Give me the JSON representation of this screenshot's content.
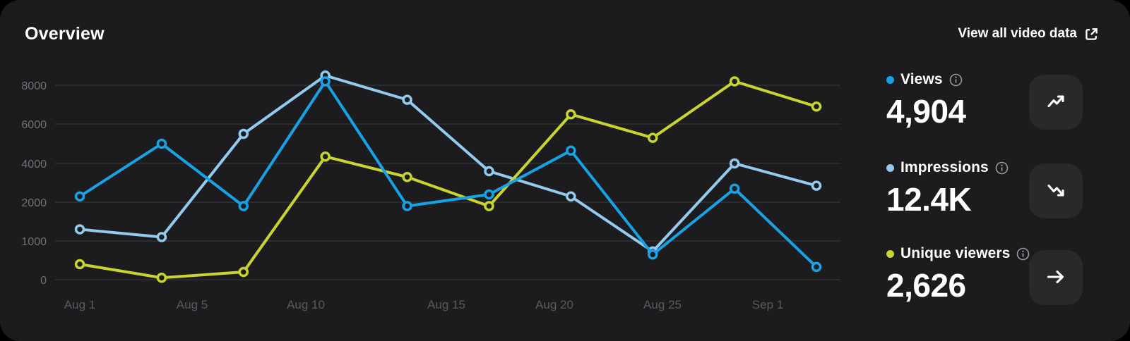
{
  "header": {
    "title": "Overview",
    "link_label": "View all video data",
    "link_icon": "external-link-icon"
  },
  "chart_data": {
    "type": "line",
    "title": "Overview — video performance over time",
    "x_labels": [
      "Aug 1",
      "Aug 5",
      "Aug 10",
      "Aug 15",
      "Aug 20",
      "Aug 25",
      "Sep 1"
    ],
    "y_ticks": [
      0,
      1000,
      2000,
      4000,
      6000,
      8000
    ],
    "y_axis_note": "ticks rendered equally spaced (non-linear spacing between labeled values)",
    "grid": "horizontal-only",
    "legend_position": "right-panel",
    "series": [
      {
        "name": "Impressions",
        "color": "#93cbee",
        "values": [
          1300,
          1100,
          5500,
          8500,
          7250,
          3600,
          2300,
          730,
          4000,
          2850
        ]
      },
      {
        "name": "Unique viewers",
        "color": "#cad42f",
        "values": [
          400,
          50,
          200,
          4350,
          3300,
          1900,
          6500,
          5300,
          8200,
          6900
        ]
      },
      {
        "name": "Views",
        "color": "#17a2e6",
        "values": [
          2300,
          5000,
          1900,
          8200,
          1900,
          2400,
          4650,
          650,
          2700,
          330
        ]
      }
    ]
  },
  "stats": [
    {
      "label": "Views",
      "value": "4,904",
      "color": "#17a2e6",
      "trend_icon": "trending-up-icon"
    },
    {
      "label": "Impressions",
      "value": "12.4K",
      "color": "#93cbee",
      "trend_icon": "trending-down-icon"
    },
    {
      "label": "Unique viewers",
      "value": "2,626",
      "color": "#cad42f",
      "trend_icon": "arrow-right-icon"
    }
  ],
  "colors": {
    "page_bg": "#000000",
    "card_bg": "#1c1c1e",
    "button_bg": "#29292b",
    "gridline": "#323234",
    "y_label": "#707275",
    "x_label": "#595a5e",
    "text": "#ffffff",
    "info_icon": "#97999c"
  }
}
